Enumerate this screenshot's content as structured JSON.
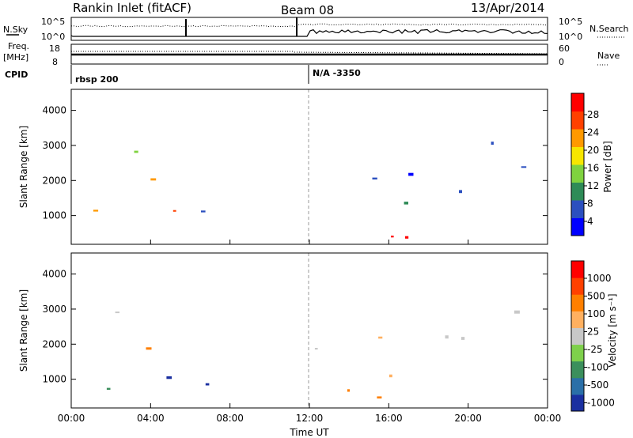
{
  "header": {
    "station": "Rankin Inlet (fitACF)",
    "beam": "Beam 08",
    "date": "13/Apr/2014"
  },
  "nsky_panel": {
    "left_label": "N.Sky",
    "right_label": "N.Search",
    "left_ticks": [
      "10^5",
      "10^0"
    ],
    "right_ticks": [
      "10^5",
      "10^0"
    ]
  },
  "freq_panel": {
    "left_label_1": "Freq.",
    "left_label_2": "[MHz]",
    "right_label": "Nave",
    "left_ticks": [
      "18",
      "8"
    ],
    "right_ticks": [
      "60",
      "0"
    ]
  },
  "cpid": {
    "label": "CPID",
    "program_1": "rbsp 200",
    "program_2": "N/A -3350"
  },
  "chart_data": [
    {
      "type": "heatmap",
      "name": "Power",
      "ylabel": "Slant Range [km]",
      "yticks": [
        "4000",
        "3000",
        "2000",
        "1000"
      ],
      "ylim": [
        180,
        4600
      ],
      "xlim": [
        0,
        24
      ],
      "colorbar_label": "Power [dB]",
      "colorbar_ticks": [
        "28",
        "24",
        "20",
        "16",
        "12",
        "8",
        "4"
      ],
      "colorbar_colors": [
        "#0000ff",
        "#2b4fbf",
        "#2e8b57",
        "#7fd23f",
        "#f7e600",
        "#ff9900",
        "#ff4000",
        "#ff0000"
      ]
    },
    {
      "type": "heatmap",
      "name": "Velocity",
      "ylabel": "Slant Range [km]",
      "yticks": [
        "4000",
        "3000",
        "2000",
        "1000"
      ],
      "ylim": [
        180,
        4600
      ],
      "xlim": [
        0,
        24
      ],
      "xlabel": "Time UT",
      "xticks": [
        "00:00",
        "04:00",
        "08:00",
        "12:00",
        "16:00",
        "20:00",
        "00:00"
      ],
      "colorbar_label": "Velocity [m s⁻¹]",
      "colorbar_ticks": [
        "1000",
        "500",
        "100",
        "25",
        "-25",
        "-100",
        "-500",
        "-1000"
      ],
      "colorbar_colors": [
        "#1a2fa0",
        "#2a6fa8",
        "#3b8f5c",
        "#7ed04b",
        "#c8c8c8",
        "#ffb060",
        "#ff7f00",
        "#ff4000",
        "#ff0000"
      ]
    }
  ]
}
